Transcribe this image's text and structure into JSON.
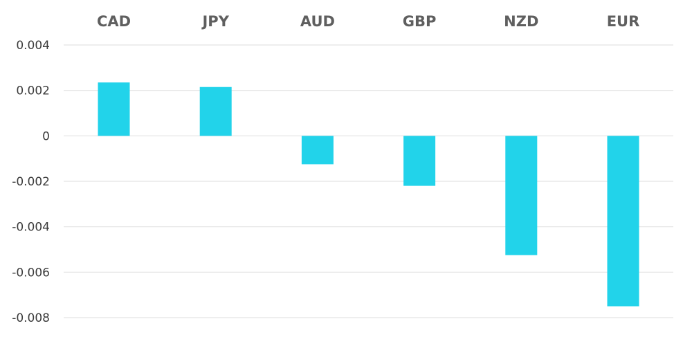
{
  "chart_data": {
    "type": "bar",
    "categories": [
      "CAD",
      "JPY",
      "AUD",
      "GBP",
      "NZD",
      "EUR"
    ],
    "values": [
      0.00235,
      0.00215,
      -0.00125,
      -0.0022,
      -0.00525,
      -0.0075
    ],
    "ylim": [
      -0.008,
      0.004
    ],
    "y_ticks": [
      0.004,
      0.002,
      0,
      -0.002,
      -0.004,
      -0.006,
      -0.008
    ],
    "y_tick_labels": [
      "0.004",
      "0.002",
      "0",
      "-0.002",
      "-0.004",
      "-0.006",
      "-0.008"
    ],
    "category_axis_position": "top",
    "grid": true,
    "bar_color": "#22d3ea",
    "grid_color": "#e3e3e3"
  }
}
